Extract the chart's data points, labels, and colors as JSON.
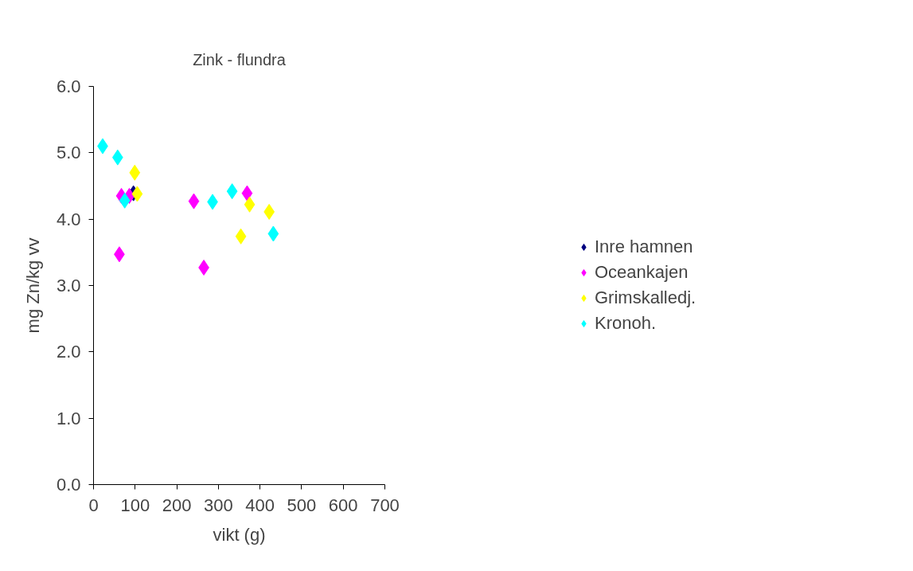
{
  "chart_data": {
    "type": "scatter",
    "title": "Zink - flundra",
    "xlabel": "vikt (g)",
    "ylabel": "mg Zn/kg vv",
    "xlim": [
      0,
      700
    ],
    "xticks": [
      0,
      100,
      200,
      300,
      400,
      500,
      600,
      700
    ],
    "ylim": [
      0,
      6
    ],
    "yticks": [
      {
        "value": 0,
        "label": "0.0"
      },
      {
        "value": 1,
        "label": "1.0"
      },
      {
        "value": 2,
        "label": "2.0"
      },
      {
        "value": 3,
        "label": "3.0"
      },
      {
        "value": 4,
        "label": "4.0"
      },
      {
        "value": 5,
        "label": "5.0"
      },
      {
        "value": 6,
        "label": "6.0"
      }
    ],
    "grid": false,
    "legend": "right",
    "marker": "diamond",
    "series": [
      {
        "name": "Inre hamnen",
        "color": "#000080",
        "x": [
          96
        ],
        "values": [
          4.39
        ]
      },
      {
        "name": "Oceankajen",
        "color": "#ff00ff",
        "x": [
          67,
          86,
          62,
          241,
          369,
          265
        ],
        "values": [
          4.35,
          4.35,
          3.47,
          4.27,
          4.39,
          3.27
        ]
      },
      {
        "name": "Grimskalledj.",
        "color": "#ffff00",
        "x": [
          99,
          105,
          375,
          422,
          354
        ],
        "values": [
          4.7,
          4.38,
          4.22,
          4.11,
          3.74
        ]
      },
      {
        "name": "Kronoh.",
        "color": "#00ffff",
        "x": [
          22,
          58,
          75,
          286,
          333,
          432
        ],
        "values": [
          5.1,
          4.93,
          4.28,
          4.26,
          4.42,
          3.78
        ]
      }
    ]
  }
}
